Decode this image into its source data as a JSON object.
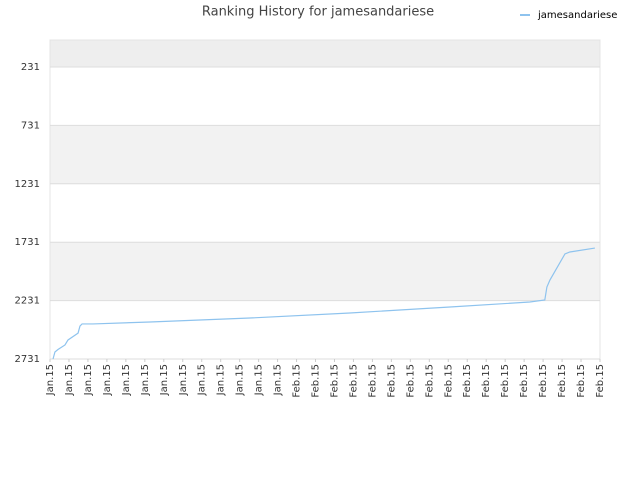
{
  "chart_data": {
    "type": "line",
    "title": "Ranking History for jamesandariese",
    "series": [
      {
        "name": "jamesandariese",
        "color": "#8ec3ee",
        "x": [
          0.16,
          0.26,
          0.42,
          0.79,
          0.95,
          1.48,
          1.58,
          1.69,
          2.27,
          5.27,
          10.54,
          15.81,
          21.09,
          25.3,
          26.09,
          26.2,
          26.36,
          27.15,
          27.41,
          28.73
        ],
        "values": [
          2731,
          2671,
          2650,
          2611,
          2568,
          2509,
          2449,
          2431,
          2431,
          2414,
          2380,
          2337,
          2286,
          2243,
          2226,
          2115,
          2055,
          1832,
          1815,
          1781
        ]
      }
    ],
    "ylim": [
      2731,
      0
    ],
    "yticks": [
      231,
      731,
      1231,
      1731,
      2231,
      2731
    ],
    "xlim": [
      0,
      29
    ],
    "xticks": [
      {
        "value": 0,
        "label": "Jan.15"
      },
      {
        "value": 1,
        "label": "Jan.15"
      },
      {
        "value": 2,
        "label": "Jan.15"
      },
      {
        "value": 3,
        "label": "Jan.15"
      },
      {
        "value": 4,
        "label": "Jan.15"
      },
      {
        "value": 5,
        "label": "Jan.15"
      },
      {
        "value": 6,
        "label": "Jan.15"
      },
      {
        "value": 7,
        "label": "Jan.15"
      },
      {
        "value": 8,
        "label": "Jan.15"
      },
      {
        "value": 9,
        "label": "Jan.15"
      },
      {
        "value": 10,
        "label": "Jan.15"
      },
      {
        "value": 11,
        "label": "Jan.15"
      },
      {
        "value": 12,
        "label": "Jan.15"
      },
      {
        "value": 13,
        "label": "Feb.15"
      },
      {
        "value": 14,
        "label": "Feb.15"
      },
      {
        "value": 15,
        "label": "Feb.15"
      },
      {
        "value": 16,
        "label": "Feb.15"
      },
      {
        "value": 17,
        "label": "Feb.15"
      },
      {
        "value": 18,
        "label": "Feb.15"
      },
      {
        "value": 19,
        "label": "Feb.15"
      },
      {
        "value": 20,
        "label": "Feb.15"
      },
      {
        "value": 21,
        "label": "Feb.15"
      },
      {
        "value": 22,
        "label": "Feb.15"
      },
      {
        "value": 23,
        "label": "Feb.15"
      },
      {
        "value": 24,
        "label": "Feb.15"
      },
      {
        "value": 25,
        "label": "Feb.15"
      },
      {
        "value": 26,
        "label": "Feb.15"
      },
      {
        "value": 27,
        "label": "Feb.15"
      },
      {
        "value": 28,
        "label": "Feb.15"
      },
      {
        "value": 29,
        "label": "Feb.15"
      }
    ],
    "grid": true,
    "legend": "top-right"
  }
}
